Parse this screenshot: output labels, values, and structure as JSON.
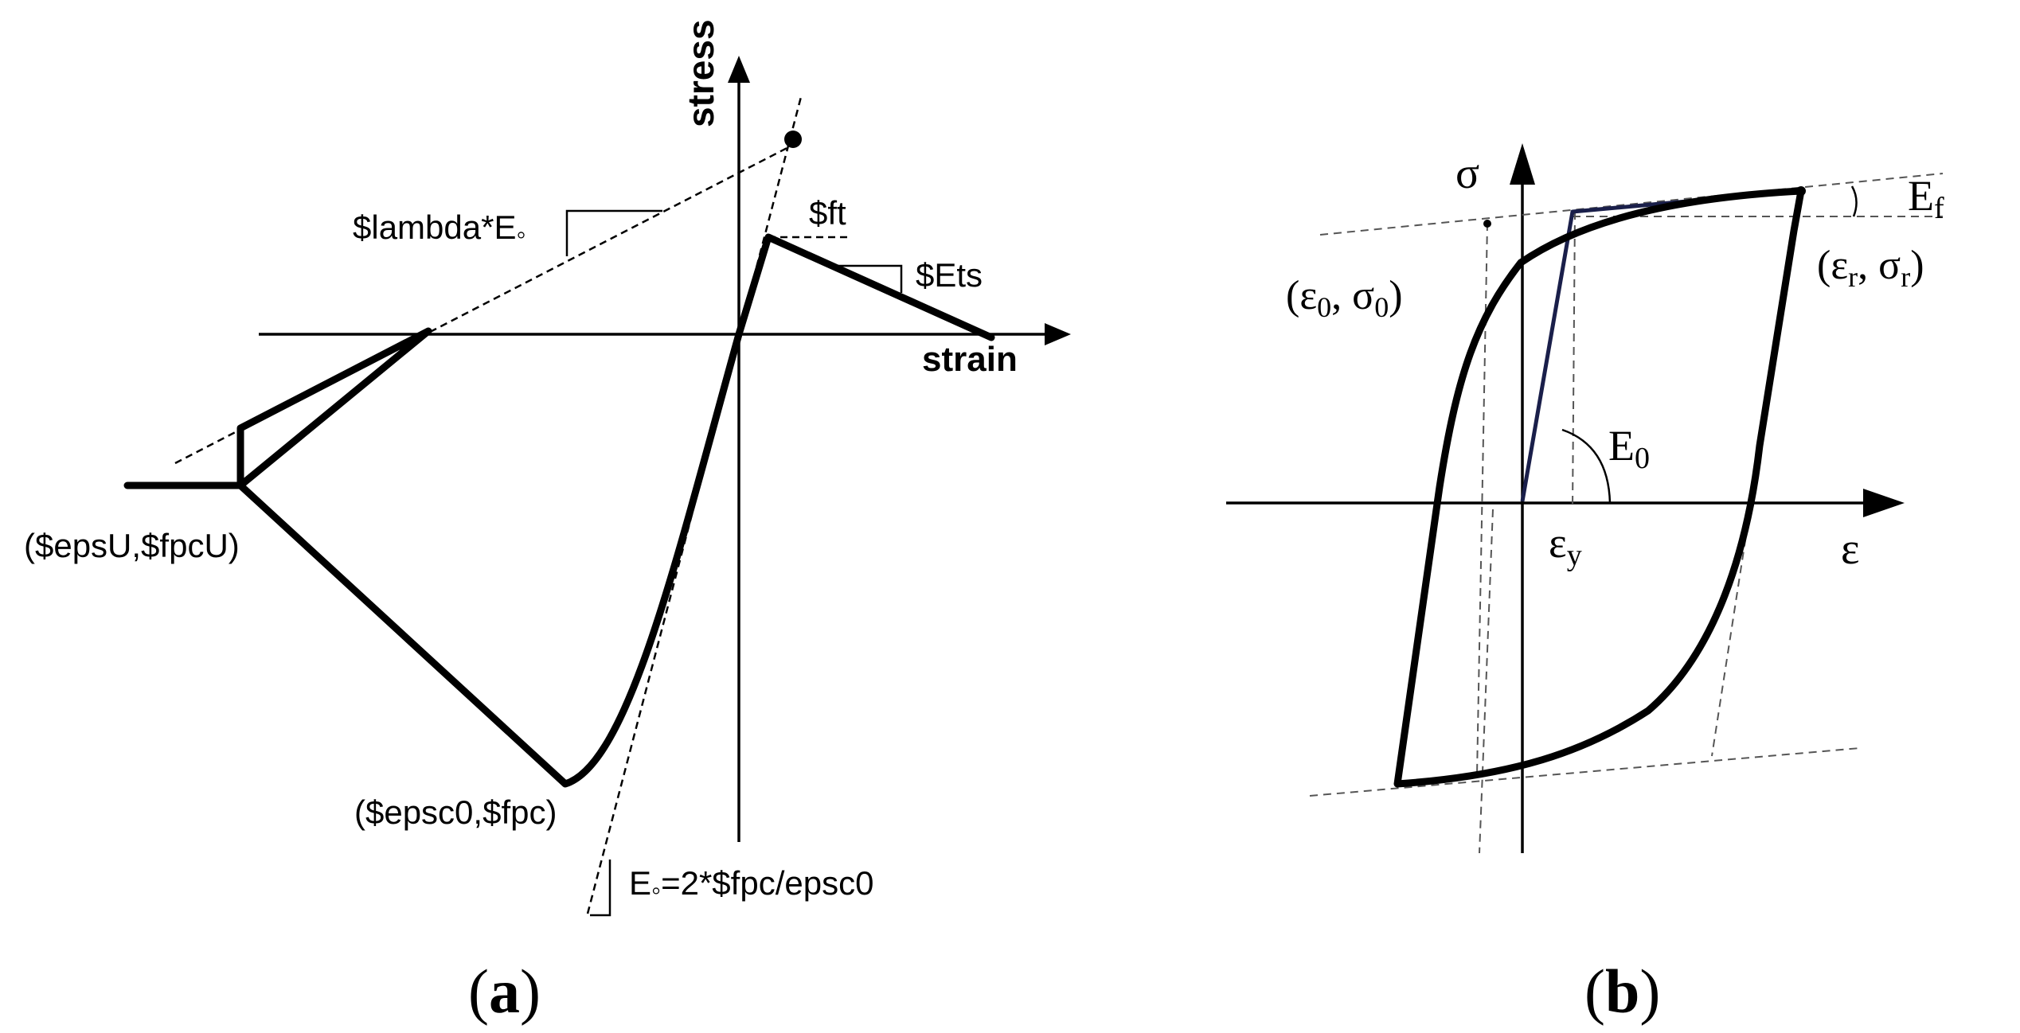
{
  "panel_a": {
    "label_open": "(",
    "label_letter": "a",
    "label_close": ")",
    "axis_y_label": "stress",
    "axis_x_label": "strain",
    "lambda_label": "$lambda*E",
    "lambda_sub": "◦",
    "ft_label": "$ft",
    "ets_label": "$Ets",
    "epsu_point_label": "($epsU,$fpcU)",
    "epsc0_point_label": "($epsc0,$fpc)",
    "e0_label_main": "E",
    "e0_label_sub": "◦",
    "e0_label_rest": "=2*$fpc/epsc0"
  },
  "panel_b": {
    "label_open": "(",
    "label_letter": "b",
    "label_close": ")",
    "axis_y_label": "σ",
    "axis_x_label": "ε",
    "ef_main": "E",
    "ef_sub": "f",
    "e0_main": "E",
    "e0_sub": "0",
    "eps_y_main": "ε",
    "eps_y_sub": "y",
    "origin_point": {
      "open": "(",
      "eps_main": "ε",
      "eps_sub": "0",
      "comma": ", ",
      "sig_main": "σ",
      "sig_sub": "0",
      "close": ")"
    },
    "reversal_point": {
      "open": "(",
      "eps_main": "ε",
      "eps_sub": "r",
      "comma": ", ",
      "sig_main": "σ",
      "sig_sub": "r",
      "close": ")"
    }
  }
}
